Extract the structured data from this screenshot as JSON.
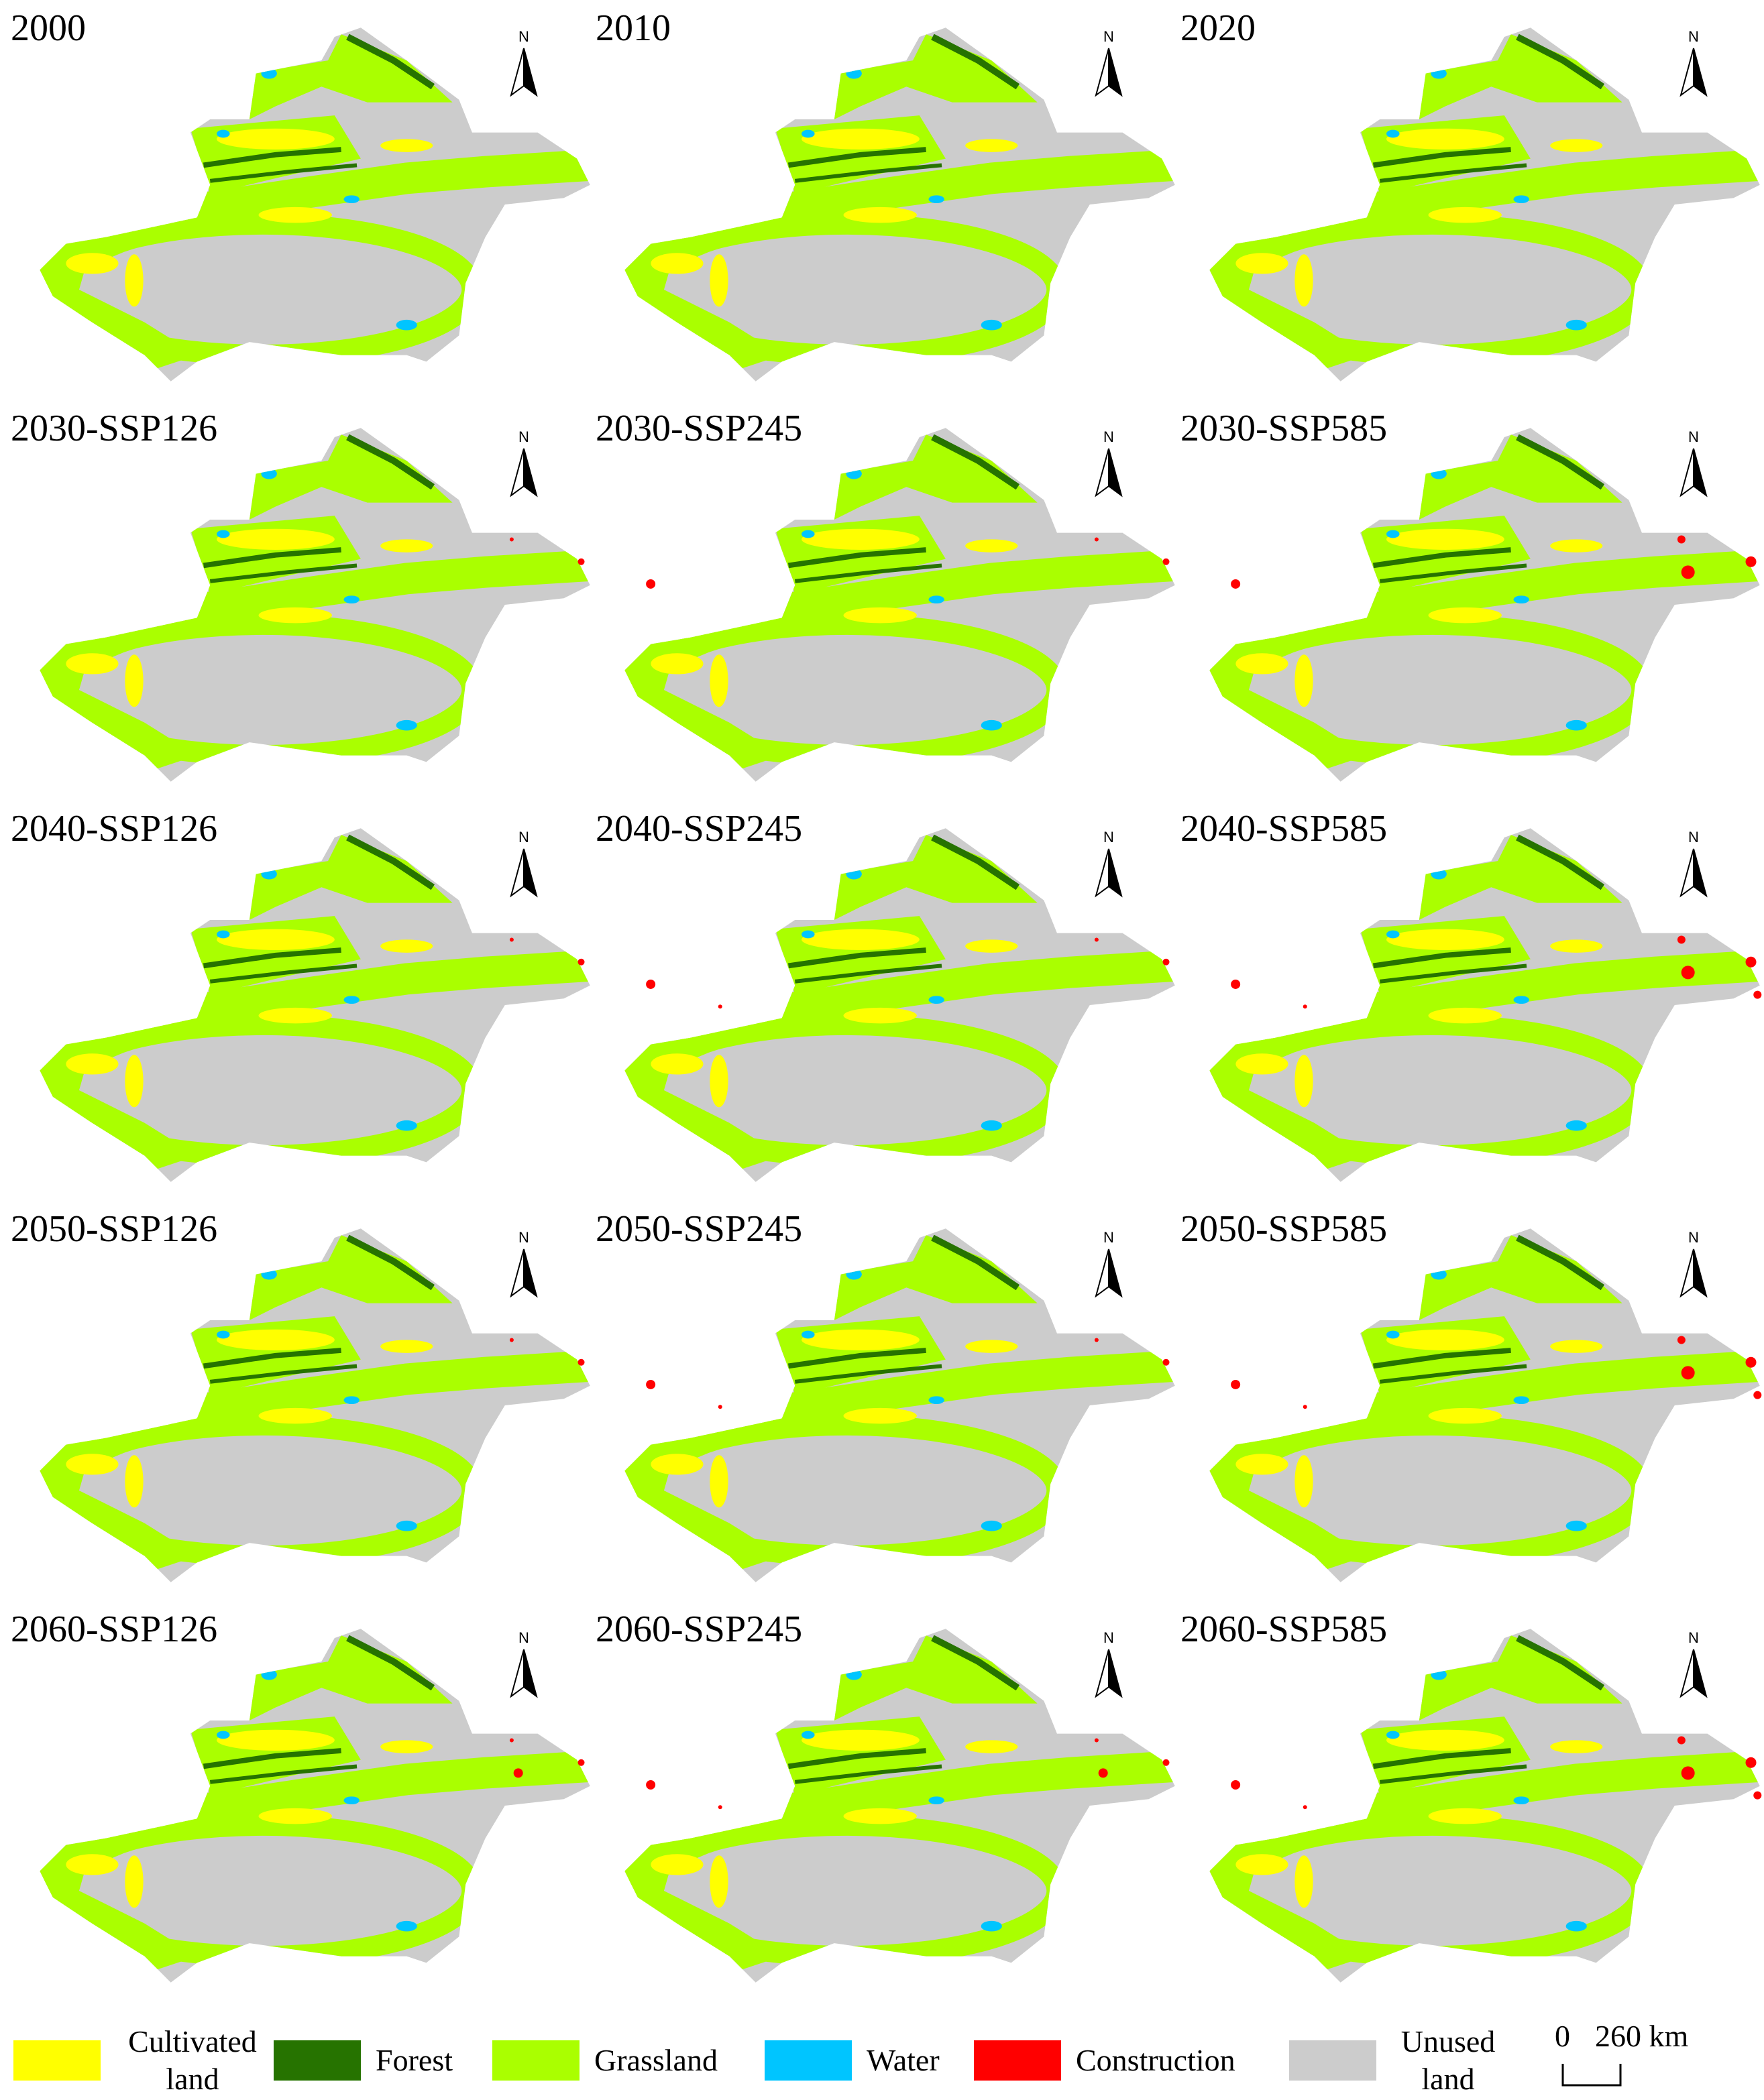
{
  "panels": [
    "2000",
    "2010",
    "2020",
    "2030-SSP126",
    "2030-SSP245",
    "2030-SSP585",
    "2040-SSP126",
    "2040-SSP245",
    "2040-SSP585",
    "2050-SSP126",
    "2050-SSP245",
    "2050-SSP585",
    "2060-SSP126",
    "2060-SSP245",
    "2060-SSP585"
  ],
  "north_label": "N",
  "legend": [
    {
      "label": "Cultivated land",
      "color": "#ffff00"
    },
    {
      "label": "Forest",
      "color": "#267300"
    },
    {
      "label": "Grassland",
      "color": "#aaff00"
    },
    {
      "label": "Water",
      "color": "#00c5ff"
    },
    {
      "label": "Construction",
      "color": "#ff0000"
    },
    {
      "label": "Unused land",
      "color": "#cccccc"
    }
  ],
  "scale_bar": {
    "start": "0",
    "end": "260 km"
  }
}
